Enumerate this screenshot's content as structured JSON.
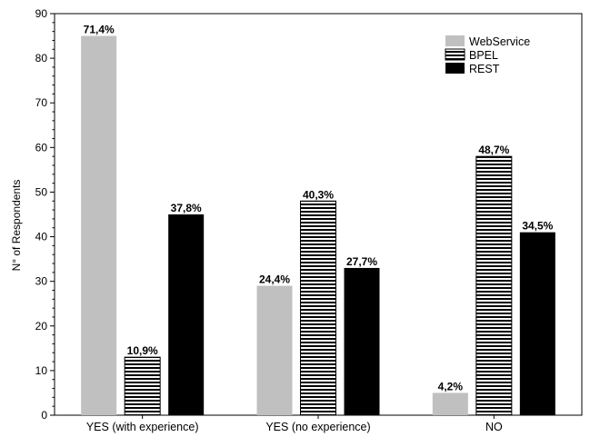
{
  "chart_data": {
    "type": "bar",
    "ylabel": "N° of Respondents",
    "xlabel": "",
    "title": "",
    "ylim": [
      0,
      90
    ],
    "yticks": [
      0,
      10,
      20,
      30,
      40,
      50,
      60,
      70,
      80,
      90
    ],
    "categories": [
      "YES (with experience)",
      "YES (no experience)",
      "NO"
    ],
    "series": [
      {
        "name": "WebService",
        "values": [
          85,
          29,
          5
        ],
        "labels": [
          "71,4%",
          "24,4%",
          "4,2%"
        ],
        "fill": "#c0c0c0",
        "pattern": "solid"
      },
      {
        "name": "BPEL",
        "values": [
          13,
          48,
          58
        ],
        "labels": [
          "10,9%",
          "40,3%",
          "48,7%"
        ],
        "fill": "#000000",
        "pattern": "horizontal-stripes"
      },
      {
        "name": "REST",
        "values": [
          45,
          33,
          41
        ],
        "labels": [
          "37,8%",
          "27,7%",
          "34,5%"
        ],
        "fill": "#000000",
        "pattern": "solid"
      }
    ],
    "grid": false,
    "legend_position": "top-right"
  }
}
